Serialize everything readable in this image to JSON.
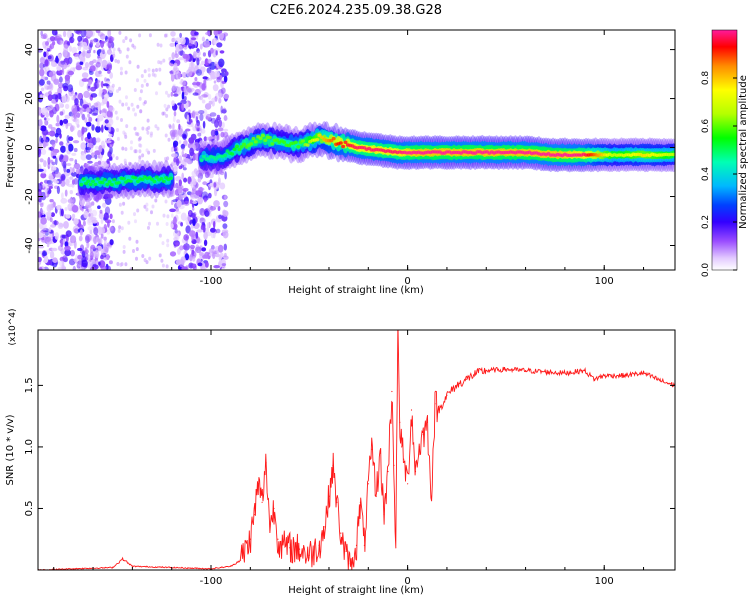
{
  "figure_title": "C2E6.2024.235.09.38.G28",
  "chart_data": [
    {
      "type": "heatmap",
      "title": "",
      "xlabel": "Height of straight line (km)",
      "ylabel": "Frequency (Hz)",
      "xlim": [
        -188,
        136
      ],
      "ylim": [
        -50,
        48
      ],
      "xticks": [
        -100,
        0,
        100
      ],
      "yticks": [
        -40,
        -20,
        0,
        20,
        40
      ],
      "grid": false,
      "colorbar": {
        "label": "Normalized spectral amplitude",
        "range": [
          0,
          1
        ],
        "ticks": [
          0.0,
          0.2,
          0.4,
          0.6,
          0.8
        ],
        "colors": [
          "#ffffff",
          "#c47cff",
          "#6a00ff",
          "#0000ff",
          "#00b8ff",
          "#00ffc8",
          "#00ff00",
          "#c8ff00",
          "#ffff00",
          "#ff9900",
          "#ff0000",
          "#ff1aa0"
        ]
      },
      "ridge": {
        "x": [
          -165,
          -150,
          -135,
          -120,
          -105,
          -95,
          -85,
          -75,
          -65,
          -55,
          -45,
          -35,
          -25,
          -15,
          -5,
          5,
          20,
          40,
          60,
          75,
          90,
          105,
          120,
          135
        ],
        "frequency_hz": [
          -14,
          -14,
          -13,
          -13,
          -4,
          -4,
          0,
          4,
          2,
          1,
          4,
          2,
          0,
          -1,
          -2,
          -2,
          -2,
          -2,
          -2,
          -3,
          -3,
          -3,
          -3,
          -3
        ],
        "amplitude": [
          0.45,
          0.45,
          0.45,
          0.45,
          0.4,
          0.4,
          0.5,
          0.55,
          0.5,
          0.5,
          0.7,
          0.85,
          0.9,
          0.9,
          0.9,
          0.95,
          0.95,
          0.95,
          0.95,
          0.95,
          0.9,
          0.6,
          0.7,
          0.6
        ]
      },
      "noise_regions_x": [
        [
          -188,
          -150
        ],
        [
          -120,
          -92
        ]
      ]
    },
    {
      "type": "line",
      "title": "",
      "xlabel": "Height of straight line (km)",
      "ylabel": "SNR (10 * v/v)",
      "y_multiplier": "(x10^4)",
      "xlim": [
        -188,
        136
      ],
      "ylim": [
        0,
        1.95
      ],
      "xticks": [
        -100,
        0,
        100
      ],
      "yticks": [
        0.5,
        1.0,
        1.5
      ],
      "ytick_labels": [
        "0.5",
        "1.0",
        "1.5"
      ],
      "grid": false,
      "line_color": "#ff1a1a",
      "series": [
        {
          "x": [
            -188,
            -170,
            -150,
            -145,
            -140,
            -120,
            -100,
            -90,
            -85,
            -80,
            -78,
            -76,
            -74,
            -72,
            -70,
            -68,
            -66,
            -64,
            -60,
            -55,
            -50,
            -45,
            -42,
            -40,
            -38,
            -36,
            -34,
            -32,
            -30,
            -28,
            -26,
            -24,
            -22,
            -20,
            -18,
            -16,
            -14,
            -12,
            -10,
            -8,
            -7,
            -6,
            -5,
            -4,
            -3,
            -2,
            0,
            2,
            4,
            6,
            8,
            10,
            12,
            14,
            16,
            20,
            25,
            30,
            35,
            40,
            50,
            60,
            70,
            80,
            90,
            95,
            100,
            110,
            120,
            130,
            136
          ],
          "y": [
            0.0,
            0.01,
            0.02,
            0.09,
            0.03,
            0.02,
            0.01,
            0.03,
            0.08,
            0.25,
            0.45,
            0.7,
            0.55,
            0.87,
            0.35,
            0.5,
            0.25,
            0.2,
            0.18,
            0.17,
            0.12,
            0.2,
            0.35,
            0.6,
            0.85,
            0.55,
            0.3,
            0.15,
            0.05,
            0.1,
            0.2,
            0.55,
            0.2,
            0.7,
            0.98,
            0.6,
            0.95,
            0.45,
            0.8,
            1.45,
            0.85,
            0.18,
            1.95,
            1.2,
            1.0,
            0.9,
            0.7,
            1.3,
            0.8,
            1.0,
            1.1,
            1.2,
            0.6,
            1.35,
            1.3,
            1.42,
            1.5,
            1.55,
            1.6,
            1.62,
            1.63,
            1.62,
            1.61,
            1.6,
            1.62,
            1.55,
            1.58,
            1.58,
            1.6,
            1.53,
            1.5
          ]
        }
      ]
    }
  ]
}
